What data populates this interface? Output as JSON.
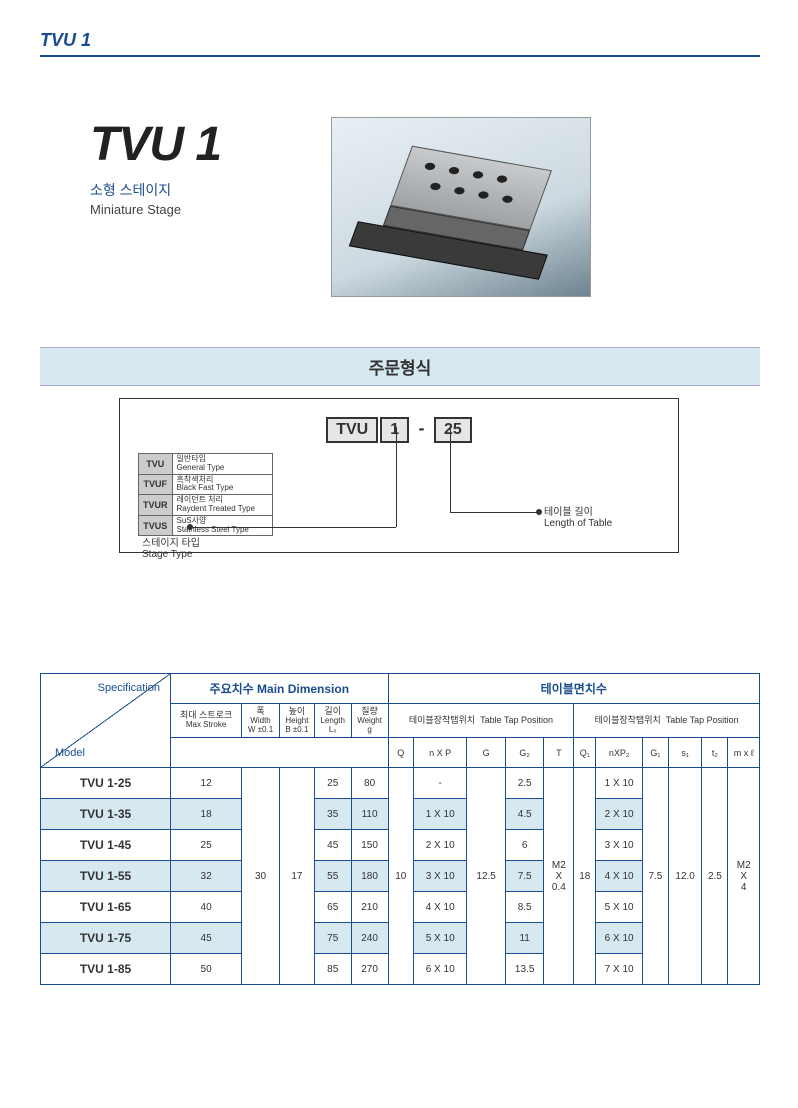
{
  "header": {
    "title": "TVU 1"
  },
  "title": {
    "main": "TVU 1",
    "sub_kr": "소형 스테이지",
    "sub_en": "Miniature Stage"
  },
  "order": {
    "section_title": "주문형식",
    "code_seg1": "TVU",
    "code_seg2": "1",
    "code_dash": "-",
    "code_seg3": "25",
    "types": [
      {
        "code": "TVU",
        "kr": "일반타입",
        "en": "General Type"
      },
      {
        "code": "TVUF",
        "kr": "흑착색처리",
        "en": "Black Fast Type"
      },
      {
        "code": "TVUR",
        "kr": "레이던트 처리",
        "en": "Raydent Treated Type"
      },
      {
        "code": "TVUS",
        "kr": "SuS사양",
        "en": "Stainless Steel Type"
      }
    ],
    "callouts": {
      "left_kr": "스테이지 타입",
      "left_en": "Stage Type",
      "right_kr": "테이블 길이",
      "right_en": "Length of Table"
    }
  },
  "spec": {
    "corner_spec_label": "Specification",
    "corner_model_label": "Model",
    "group_main_dim": "주요치수 Main Dimension",
    "group_table_dim": "테이블면치수",
    "sub_tap1_kr": "테이블장착탭위치",
    "sub_tap1_en": "Table Tap Position",
    "sub_tap2_kr": "테이블장착탭위치",
    "sub_tap2_en": "Table Tap Position",
    "cols": {
      "max_stroke_kr": "최대\n스트로크",
      "max_stroke_en": "Max\nStroke",
      "width_kr": "폭",
      "width_en": "Width",
      "width_sym": "W\n±0.1",
      "height_kr": "높이",
      "height_en": "Height",
      "height_sym": "B\n±0.1",
      "length_kr": "길이",
      "length_en": "Length",
      "length_sym": "L₀",
      "weight_kr": "질량",
      "weight_en": "Weight",
      "weight_sym": "g",
      "Q": "Q",
      "nXP": "n X P",
      "G": "G",
      "G2": "G₂",
      "T": "T",
      "Q1": "Q₁",
      "nXP2": "nXP₂",
      "G1": "G₁",
      "s1": "s₁",
      "t2": "t₂",
      "mxl": "m x ℓ"
    },
    "shared": {
      "W": "30",
      "B": "17",
      "Q": "10",
      "G": "12.5",
      "T": "M2\nX\n0.4",
      "Q1": "18",
      "G1": "7.5",
      "s1": "12.0",
      "t2": "2.5",
      "mxl": "M2\nX\n4"
    },
    "rows": [
      {
        "model": "TVU 1-25",
        "stroke": "12",
        "L0": "25",
        "wt": "80",
        "nXP": "-",
        "G2": "2.5",
        "nXP2": "1 X 10"
      },
      {
        "model": "TVU 1-35",
        "stroke": "18",
        "L0": "35",
        "wt": "110",
        "nXP": "1 X 10",
        "G2": "4.5",
        "nXP2": "2 X 10"
      },
      {
        "model": "TVU 1-45",
        "stroke": "25",
        "L0": "45",
        "wt": "150",
        "nXP": "2 X 10",
        "G2": "6",
        "nXP2": "3 X 10"
      },
      {
        "model": "TVU 1-55",
        "stroke": "32",
        "L0": "55",
        "wt": "180",
        "nXP": "3 X 10",
        "G2": "7.5",
        "nXP2": "4 X 10"
      },
      {
        "model": "TVU 1-65",
        "stroke": "40",
        "L0": "65",
        "wt": "210",
        "nXP": "4 X 10",
        "G2": "8.5",
        "nXP2": "5 X 10"
      },
      {
        "model": "TVU 1-75",
        "stroke": "45",
        "L0": "75",
        "wt": "240",
        "nXP": "5 X 10",
        "G2": "11",
        "nXP2": "6 X 10"
      },
      {
        "model": "TVU 1-85",
        "stroke": "50",
        "L0": "85",
        "wt": "270",
        "nXP": "6 X 10",
        "G2": "13.5",
        "nXP2": "7 X 10"
      }
    ]
  }
}
